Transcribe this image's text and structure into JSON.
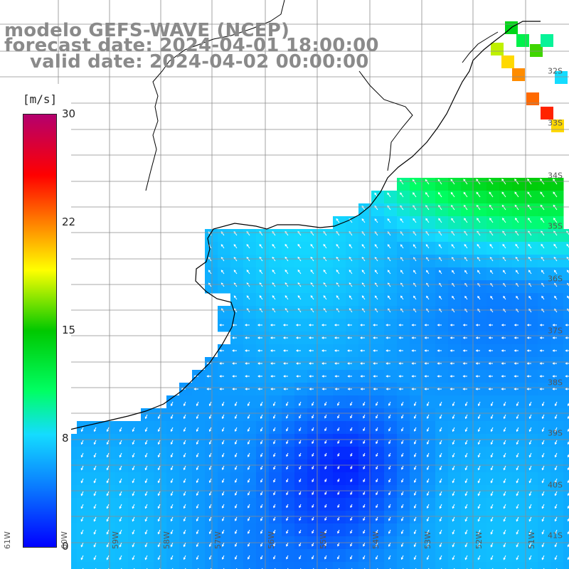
{
  "title": {
    "line1": "modelo GEFS-WAVE (NCEP)",
    "line2": "forecast date: 2024-04-01 18:00:00",
    "line3": "valid date: 2024-04-02 00:00:00"
  },
  "colorbar": {
    "unit": "[m/s]",
    "ticks": [
      "30",
      "22",
      "15",
      "8",
      "0"
    ],
    "tick_values": [
      30,
      22,
      15,
      8,
      0
    ],
    "colors": {
      "c0": "#0000ff",
      "c4": "#0a7cff",
      "c8": "#14dcff",
      "c11": "#00ff64",
      "c15": "#00c800",
      "c19": "#ffff00",
      "c22": "#ff8c00",
      "c26": "#ff0000",
      "c30": "#b4006e"
    }
  },
  "axes": {
    "lon_labels": [
      "61W",
      "60W",
      "59W",
      "58W",
      "57W",
      "56W",
      "55W",
      "54W",
      "53W",
      "52W",
      "51W"
    ],
    "lat_labels": [
      "32S",
      "33S",
      "34S",
      "35S",
      "36S",
      "37S",
      "38S",
      "39S",
      "40S",
      "41S"
    ],
    "lon_range": [
      -61,
      -51
    ],
    "lat_range": [
      -41,
      -31
    ]
  },
  "map": {
    "land_color": "#ffffff",
    "coast_color": "#000000",
    "grid_color": "#8c8c8c",
    "arrow_color": "#ffffff"
  }
}
